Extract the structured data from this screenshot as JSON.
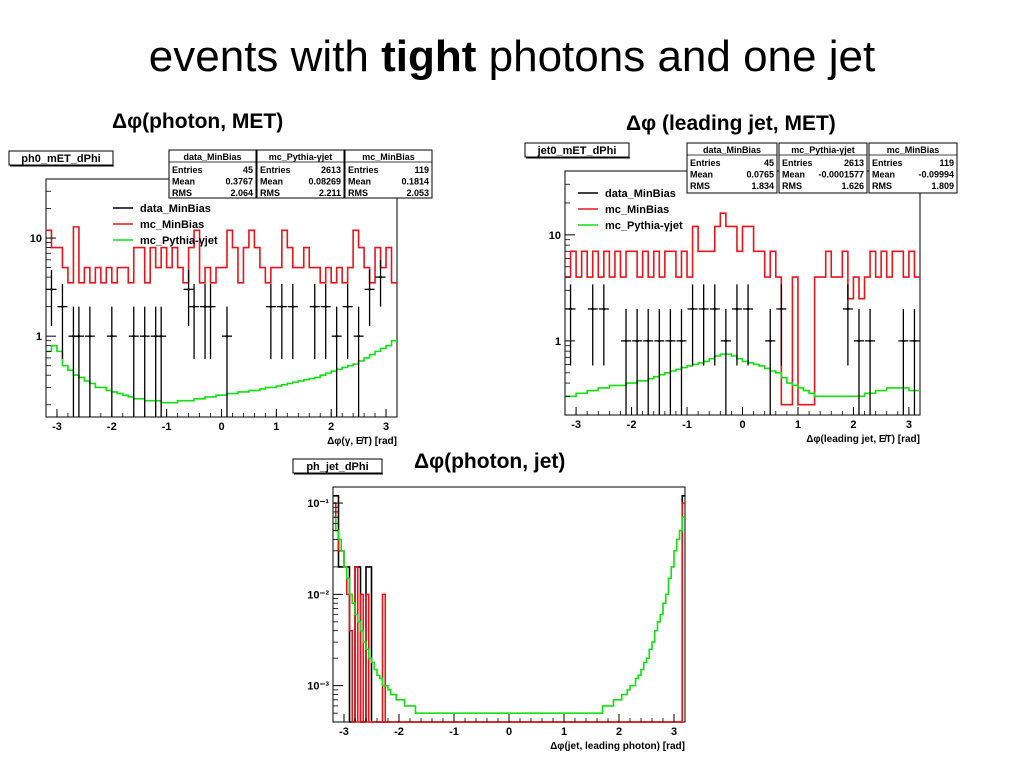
{
  "slide": {
    "title_pre": "events with ",
    "title_bold": "tight",
    "title_post": " photons and one jet"
  },
  "chart_data": [
    {
      "type": "histogram",
      "caption": "Δφ(photon, MET)",
      "hist_name": "ph0_mET_dPhi",
      "xlabel": "Δφ(γ, E̸T) [rad]",
      "xlim": [
        -3.2,
        3.2
      ],
      "y_scale": "log",
      "ylim": [
        0.15,
        40
      ],
      "yticks": [
        {
          "v": 1,
          "label": "1"
        },
        {
          "v": 10,
          "label": "10"
        }
      ],
      "xticks": [
        {
          "v": -3,
          "label": "-3"
        },
        {
          "v": -2,
          "label": "-2"
        },
        {
          "v": -1,
          "label": "-1"
        },
        {
          "v": 0,
          "label": "0"
        },
        {
          "v": 1,
          "label": "1"
        },
        {
          "v": 2,
          "label": "2"
        },
        {
          "v": 3,
          "label": "3"
        }
      ],
      "legend": [
        "data_MinBias",
        "mc_MinBias",
        "mc_Pythia-γjet"
      ],
      "colors": {
        "data": "#000000",
        "mc_minbias": "#e8141c",
        "mc_pythia": "#12e012"
      },
      "stats": [
        {
          "title": "data_MinBias",
          "rows": [
            [
              "Entries",
              "45"
            ],
            [
              "Mean",
              "0.3767"
            ],
            [
              "RMS",
              "2.064"
            ]
          ]
        },
        {
          "title": "mc_Pythia-γjet",
          "rows": [
            [
              "Entries",
              "2613"
            ],
            [
              "Mean",
              "0.08269"
            ],
            [
              "RMS",
              "2.211"
            ]
          ]
        },
        {
          "title": "mc_MinBias",
          "rows": [
            [
              "Entries",
              "119"
            ],
            [
              "Mean",
              "0.1814"
            ],
            [
              "RMS",
              "2.053"
            ]
          ]
        }
      ],
      "series": [
        {
          "name": "mc_MinBias",
          "style": "step",
          "values": [
            12,
            8,
            8,
            5,
            3.5,
            13,
            3.5,
            5,
            3.5,
            5,
            3.5,
            5,
            3.5,
            5,
            5,
            3.5,
            8,
            8,
            3.5,
            8,
            5,
            8,
            5,
            8,
            5,
            3.5,
            8,
            12,
            3.5,
            5,
            3.5,
            5,
            5,
            12,
            8,
            3.5,
            8,
            12,
            8,
            5,
            3.5,
            5,
            5,
            12,
            8,
            5,
            5,
            8,
            5,
            5,
            3.5,
            5,
            3.5,
            5,
            3.5,
            5,
            12,
            8,
            5,
            3.5,
            8,
            5,
            8,
            3.5
          ]
        },
        {
          "name": "mc_Pythia-γjet",
          "style": "step",
          "values": [
            0.7,
            0.8,
            0.7,
            0.5,
            0.45,
            0.4,
            0.38,
            0.35,
            0.33,
            0.3,
            0.3,
            0.28,
            0.27,
            0.26,
            0.25,
            0.24,
            0.23,
            0.23,
            0.22,
            0.22,
            0.22,
            0.21,
            0.21,
            0.21,
            0.22,
            0.22,
            0.22,
            0.23,
            0.23,
            0.24,
            0.24,
            0.25,
            0.25,
            0.26,
            0.26,
            0.27,
            0.27,
            0.28,
            0.28,
            0.29,
            0.3,
            0.3,
            0.31,
            0.32,
            0.33,
            0.34,
            0.35,
            0.36,
            0.37,
            0.38,
            0.4,
            0.42,
            0.44,
            0.46,
            0.48,
            0.5,
            0.52,
            0.56,
            0.6,
            0.65,
            0.7,
            0.75,
            0.8,
            0.9
          ]
        },
        {
          "name": "data_MinBias",
          "style": "points",
          "x": [
            -3.1,
            -2.9,
            -2.7,
            -2.6,
            -2.4,
            -2.0,
            -1.6,
            -1.4,
            -1.2,
            -1.1,
            -0.6,
            -0.5,
            -0.3,
            -0.2,
            0.1,
            0.9,
            1.1,
            1.3,
            1.7,
            1.9,
            2.1,
            2.3,
            2.5,
            2.7,
            2.9
          ],
          "y": [
            3,
            2,
            1,
            1,
            1,
            1,
            1,
            1,
            1,
            1,
            3,
            2,
            2,
            2,
            1,
            2,
            2,
            2,
            2,
            2,
            1,
            2,
            1,
            3,
            4
          ]
        }
      ]
    },
    {
      "type": "histogram",
      "caption": "Δφ (leading jet, MET)",
      "hist_name": "jet0_mET_dPhi",
      "xlabel": "Δφ(leading jet, E̸T) [rad]",
      "xlim": [
        -3.2,
        3.2
      ],
      "y_scale": "log",
      "ylim": [
        0.2,
        40
      ],
      "yticks": [
        {
          "v": 1,
          "label": "1"
        },
        {
          "v": 10,
          "label": "10"
        }
      ],
      "xticks": [
        {
          "v": -3,
          "label": "-3"
        },
        {
          "v": -2,
          "label": "-2"
        },
        {
          "v": -1,
          "label": "-1"
        },
        {
          "v": 0,
          "label": "0"
        },
        {
          "v": 1,
          "label": "1"
        },
        {
          "v": 2,
          "label": "2"
        },
        {
          "v": 3,
          "label": "3"
        }
      ],
      "legend": [
        "data_MinBias",
        "mc_MinBias",
        "mc_Pythia-γjet"
      ],
      "colors": {
        "data": "#000000",
        "mc_minbias": "#e8141c",
        "mc_pythia": "#12e012"
      },
      "stats": [
        {
          "title": "data_MinBias",
          "rows": [
            [
              "Entries",
              "45"
            ],
            [
              "Mean",
              "0.0765"
            ],
            [
              "RMS",
              "1.834"
            ]
          ]
        },
        {
          "title": "mc_Pythia-γjet",
          "rows": [
            [
              "Entries",
              "2613"
            ],
            [
              "Mean",
              "-0.0001577"
            ],
            [
              "RMS",
              "1.626"
            ]
          ]
        },
        {
          "title": "mc_MinBias",
          "rows": [
            [
              "Entries",
              "119"
            ],
            [
              "Mean",
              "-0.09994"
            ],
            [
              "RMS",
              "1.809"
            ]
          ]
        }
      ],
      "series": [
        {
          "name": "mc_MinBias",
          "style": "step",
          "values": [
            4,
            7,
            4,
            7,
            4,
            7,
            4,
            7,
            4,
            7,
            4,
            7,
            7,
            4,
            7,
            4,
            7,
            4,
            7,
            7,
            4,
            7,
            4,
            12,
            7,
            7,
            7,
            12,
            16,
            12,
            12,
            7,
            12,
            12,
            7,
            7,
            4,
            7,
            4,
            0.25,
            0.25,
            4,
            0.25,
            0.25,
            0.25,
            4,
            4,
            7,
            4,
            4,
            7,
            2.5,
            4,
            2.5,
            4,
            7,
            4,
            7,
            4,
            7,
            7,
            4,
            7,
            4
          ]
        },
        {
          "name": "mc_Pythia-γjet",
          "style": "step",
          "values": [
            0.3,
            0.3,
            0.32,
            0.32,
            0.34,
            0.34,
            0.36,
            0.36,
            0.38,
            0.38,
            0.38,
            0.4,
            0.4,
            0.42,
            0.42,
            0.44,
            0.46,
            0.48,
            0.5,
            0.52,
            0.54,
            0.56,
            0.58,
            0.6,
            0.62,
            0.64,
            0.68,
            0.72,
            0.75,
            0.75,
            0.72,
            0.68,
            0.64,
            0.62,
            0.6,
            0.58,
            0.55,
            0.52,
            0.5,
            0.45,
            0.4,
            0.38,
            0.36,
            0.34,
            0.32,
            0.3,
            0.3,
            0.3,
            0.3,
            0.3,
            0.3,
            0.3,
            0.3,
            0.3,
            0.32,
            0.32,
            0.34,
            0.34,
            0.36,
            0.36,
            0.36,
            0.36,
            0.34,
            0.34
          ]
        },
        {
          "name": "data_MinBias",
          "style": "points",
          "x": [
            -3.1,
            -2.7,
            -2.5,
            -2.1,
            -1.9,
            -1.7,
            -1.5,
            -1.3,
            -1.1,
            -0.9,
            -0.7,
            -0.5,
            -0.3,
            -0.1,
            0.1,
            0.5,
            0.7,
            1.9,
            2.1,
            2.3,
            2.9,
            3.1
          ],
          "y": [
            2,
            2,
            2,
            1,
            1,
            1,
            1,
            1,
            1,
            2,
            2,
            2,
            1,
            2,
            2,
            1,
            2,
            2,
            1,
            1,
            1,
            1
          ]
        }
      ]
    },
    {
      "type": "histogram",
      "caption": "Δφ(photon, jet)",
      "hist_name": "ph_jet_dPhi",
      "xlabel": "Δφ(jet, leading photon) [rad]",
      "xlim": [
        -3.2,
        3.2
      ],
      "y_scale": "log",
      "ylim": [
        0.0004,
        0.15
      ],
      "yticks": [
        {
          "v": 0.001,
          "label": "10⁻³"
        },
        {
          "v": 0.01,
          "label": "10⁻²"
        },
        {
          "v": 0.1,
          "label": "10⁻¹"
        }
      ],
      "xticks": [
        {
          "v": -3,
          "label": "-3"
        },
        {
          "v": -2,
          "label": "-2"
        },
        {
          "v": -1,
          "label": "-1"
        },
        {
          "v": 0,
          "label": "0"
        },
        {
          "v": 1,
          "label": "1"
        },
        {
          "v": 2,
          "label": "2"
        },
        {
          "v": 3,
          "label": "3"
        }
      ],
      "legend": [],
      "colors": {
        "data": "#000000",
        "mc_minbias": "#e8141c",
        "mc_pythia": "#12e012"
      },
      "stats": [],
      "series": [
        {
          "name": "data_MinBias",
          "style": "step",
          "values": [
            0.12,
            0.12,
            0.02,
            0.02,
            0.02,
            0.02,
            0.0004,
            0.0004,
            0.02,
            0.02,
            0.0004,
            0.0004,
            0.02,
            0.02,
            0.0004,
            0.0004,
            0.0004,
            0.0004,
            0.0004,
            0.0004,
            0.0004,
            0.0004,
            0.0004,
            0.0004,
            0.0004,
            0.0004,
            0.0004,
            0.0004,
            0.0004,
            0.0004,
            0.0004,
            0.0004,
            0.0004,
            0.0004,
            0.0004,
            0.0004,
            0.0004,
            0.0004,
            0.0004,
            0.0004,
            0.0004,
            0.0004,
            0.0004,
            0.0004,
            0.0004,
            0.0004,
            0.0004,
            0.0004,
            0.0004,
            0.0004,
            0.0004,
            0.0004,
            0.0004,
            0.0004,
            0.0004,
            0.0004,
            0.0004,
            0.0004,
            0.0004,
            0.0004,
            0.0004,
            0.0004,
            0.0004,
            0.0004,
            0.0004,
            0.0004,
            0.0004,
            0.0004,
            0.0004,
            0.0004,
            0.0004,
            0.0004,
            0.0004,
            0.0004,
            0.0004,
            0.0004,
            0.0004,
            0.0004,
            0.0004,
            0.0004,
            0.0004,
            0.0004,
            0.0004,
            0.0004,
            0.0004,
            0.0004,
            0.0004,
            0.0004,
            0.0004,
            0.0004,
            0.0004,
            0.0004,
            0.0004,
            0.0004,
            0.0004,
            0.0004,
            0.0004,
            0.0004,
            0.0004,
            0.0004,
            0.0004,
            0.0004,
            0.0004,
            0.0004,
            0.0004,
            0.0004,
            0.0004,
            0.0004,
            0.0004,
            0.0004,
            0.0004,
            0.0004,
            0.0004,
            0.0004,
            0.0004,
            0.0004,
            0.0004,
            0.0004,
            0.0004,
            0.0004,
            0.0004,
            0.0004,
            0.0004,
            0.0004,
            0.0004,
            0.0004,
            0.0004,
            0.12
          ]
        },
        {
          "name": "mc_MinBias",
          "style": "step",
          "values": [
            0.1,
            0.05,
            0.03,
            0.03,
            0.02,
            0.01,
            0.004,
            0.0004,
            0.02,
            0.0004,
            0.01,
            0.0004,
            0.01,
            0.0004,
            0.0004,
            0.0004,
            0.0004,
            0.0004,
            0.01,
            0.0004,
            0.0004,
            0.0004,
            0.0004,
            0.0004,
            0.0004,
            0.0004,
            0.0004,
            0.0004,
            0.0004,
            0.0004,
            0.0004,
            0.0004,
            0.0004,
            0.0004,
            0.0004,
            0.0004,
            0.0004,
            0.0004,
            0.0004,
            0.0004,
            0.0004,
            0.0004,
            0.0004,
            0.0004,
            0.0004,
            0.0004,
            0.0004,
            0.0004,
            0.0004,
            0.0004,
            0.0004,
            0.0004,
            0.0004,
            0.0004,
            0.0004,
            0.0004,
            0.0004,
            0.0004,
            0.0004,
            0.0004,
            0.0004,
            0.0004,
            0.0004,
            0.0004,
            0.0004,
            0.0004,
            0.0004,
            0.0004,
            0.0004,
            0.0004,
            0.0004,
            0.0004,
            0.0004,
            0.0004,
            0.0004,
            0.0004,
            0.0004,
            0.0004,
            0.0004,
            0.0004,
            0.0004,
            0.0004,
            0.0004,
            0.0004,
            0.0004,
            0.0004,
            0.0004,
            0.0004,
            0.0004,
            0.0004,
            0.0004,
            0.0004,
            0.0004,
            0.0004,
            0.0004,
            0.0004,
            0.0004,
            0.0004,
            0.0004,
            0.0004,
            0.0004,
            0.0004,
            0.0004,
            0.0004,
            0.0004,
            0.0004,
            0.0004,
            0.0004,
            0.0004,
            0.0004,
            0.0004,
            0.0004,
            0.0004,
            0.0004,
            0.0004,
            0.0004,
            0.0004,
            0.0004,
            0.0004,
            0.0004,
            0.0004,
            0.0004,
            0.0004,
            0.0004,
            0.0004,
            0.0004,
            0.0004,
            0.1
          ]
        },
        {
          "name": "mc_Pythia-γjet",
          "style": "step",
          "values": [
            0.07,
            0.05,
            0.04,
            0.03,
            0.02,
            0.015,
            0.01,
            0.008,
            0.006,
            0.005,
            0.004,
            0.003,
            0.0025,
            0.002,
            0.0018,
            0.0015,
            0.0013,
            0.0012,
            0.001,
            0.001,
            0.0009,
            0.0008,
            0.0008,
            0.0007,
            0.0007,
            0.0007,
            0.0006,
            0.0006,
            0.0006,
            0.0006,
            0.0005,
            0.0005,
            0.0005,
            0.0005,
            0.0005,
            0.0005,
            0.0005,
            0.0005,
            0.0005,
            0.0005,
            0.0005,
            0.0005,
            0.0005,
            0.0005,
            0.0005,
            0.0005,
            0.0005,
            0.0005,
            0.0005,
            0.0005,
            0.0005,
            0.0005,
            0.0005,
            0.0005,
            0.0005,
            0.0005,
            0.0005,
            0.0005,
            0.0005,
            0.0005,
            0.0005,
            0.0005,
            0.0005,
            0.0005,
            0.0005,
            0.0005,
            0.0005,
            0.0005,
            0.0005,
            0.0005,
            0.0005,
            0.0005,
            0.0005,
            0.0005,
            0.0005,
            0.0005,
            0.0005,
            0.0005,
            0.0005,
            0.0005,
            0.0005,
            0.0005,
            0.0005,
            0.0005,
            0.0005,
            0.0005,
            0.0005,
            0.0005,
            0.0005,
            0.0005,
            0.0005,
            0.0005,
            0.0005,
            0.0005,
            0.0005,
            0.0005,
            0.0005,
            0.0005,
            0.0006,
            0.0006,
            0.0006,
            0.0006,
            0.0007,
            0.0007,
            0.0007,
            0.0008,
            0.0008,
            0.0009,
            0.001,
            0.001,
            0.0012,
            0.0013,
            0.0015,
            0.0018,
            0.002,
            0.0025,
            0.003,
            0.004,
            0.005,
            0.006,
            0.008,
            0.01,
            0.015,
            0.02,
            0.03,
            0.04,
            0.05,
            0.07
          ]
        }
      ]
    }
  ]
}
